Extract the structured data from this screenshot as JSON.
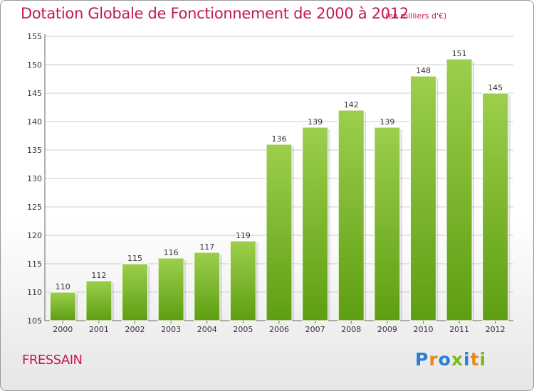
{
  "title": "Dotation Globale de Fonctionnement de 2000 à 2012",
  "subtitle": "(en milliers d'€)",
  "town": "FRESSAIN",
  "logo": {
    "text": "Proxiti",
    "letter_colors": [
      "#2a7fd4",
      "#e8891d",
      "#2a7fd4",
      "#7cb81f",
      "#2a7fd4",
      "#e8891d",
      "#7cb81f"
    ]
  },
  "colors": {
    "text": "#c2185b",
    "bar_top": "#9ccf4c",
    "bar_bottom": "#5e9e12",
    "grid": "#cccccc"
  },
  "chart_data": {
    "type": "bar",
    "categories": [
      "2000",
      "2001",
      "2002",
      "2003",
      "2004",
      "2005",
      "2006",
      "2007",
      "2008",
      "2009",
      "2010",
      "2011",
      "2012"
    ],
    "values": [
      110,
      112,
      115,
      116,
      117,
      119,
      136,
      139,
      142,
      139,
      148,
      151,
      145
    ],
    "title": "Dotation Globale de Fonctionnement de 2000 à 2012",
    "subtitle": "(en milliers d'€)",
    "xlabel": "",
    "ylabel": "",
    "ylim": [
      105,
      155
    ],
    "yticks": [
      105,
      110,
      115,
      120,
      125,
      130,
      135,
      140,
      145,
      150,
      155
    ],
    "grid": true,
    "data_labels": true
  }
}
